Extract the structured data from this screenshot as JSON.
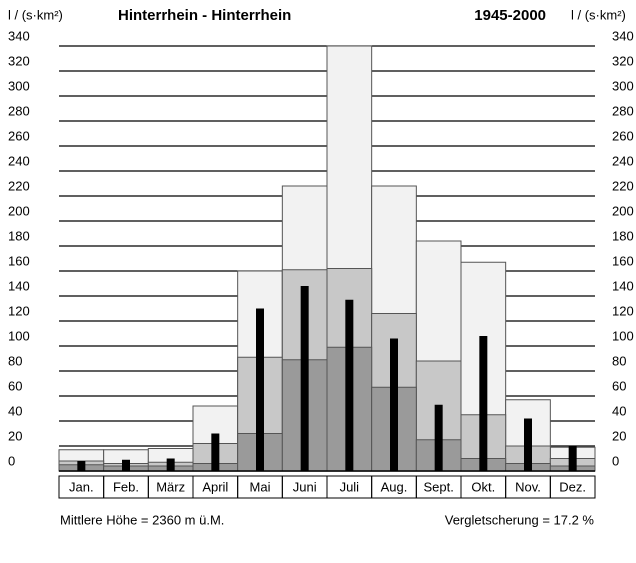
{
  "chart_data": {
    "type": "bar",
    "title": "Hinterrhein - Hinterrhein",
    "period": "1945-2000",
    "y_label": "l / (s·km²)",
    "footer_left": "Mittlere Höhe = 2360 m ü.M.",
    "footer_right": "Vergletscherung = 17.2 %",
    "categories": [
      "Jan.",
      "Feb.",
      "März",
      "April",
      "Mai",
      "Juni",
      "Juli",
      "Aug.",
      "Sept.",
      "Okt.",
      "Nov.",
      "Dez."
    ],
    "series": [
      {
        "color": "#f2f2f2",
        "values": [
          17,
          17,
          18,
          52,
          160,
          228,
          340,
          228,
          184,
          167,
          57,
          19
        ]
      },
      {
        "color": "#c8c8c8",
        "values": [
          8,
          6,
          7,
          22,
          91,
          161,
          162,
          126,
          88,
          45,
          20,
          10
        ]
      },
      {
        "color": "#9a9a9a",
        "values": [
          5,
          4,
          4,
          6,
          30,
          89,
          99,
          67,
          25,
          10,
          6,
          4
        ]
      },
      {
        "color": "#000000",
        "values": [
          8,
          9,
          10,
          30,
          130,
          148,
          137,
          106,
          53,
          108,
          42,
          20
        ]
      }
    ],
    "ylim": [
      0,
      340
    ],
    "yticks": [
      0,
      20,
      40,
      60,
      80,
      100,
      120,
      140,
      160,
      180,
      200,
      220,
      240,
      260,
      280,
      300,
      320,
      340
    ],
    "grid": true
  }
}
